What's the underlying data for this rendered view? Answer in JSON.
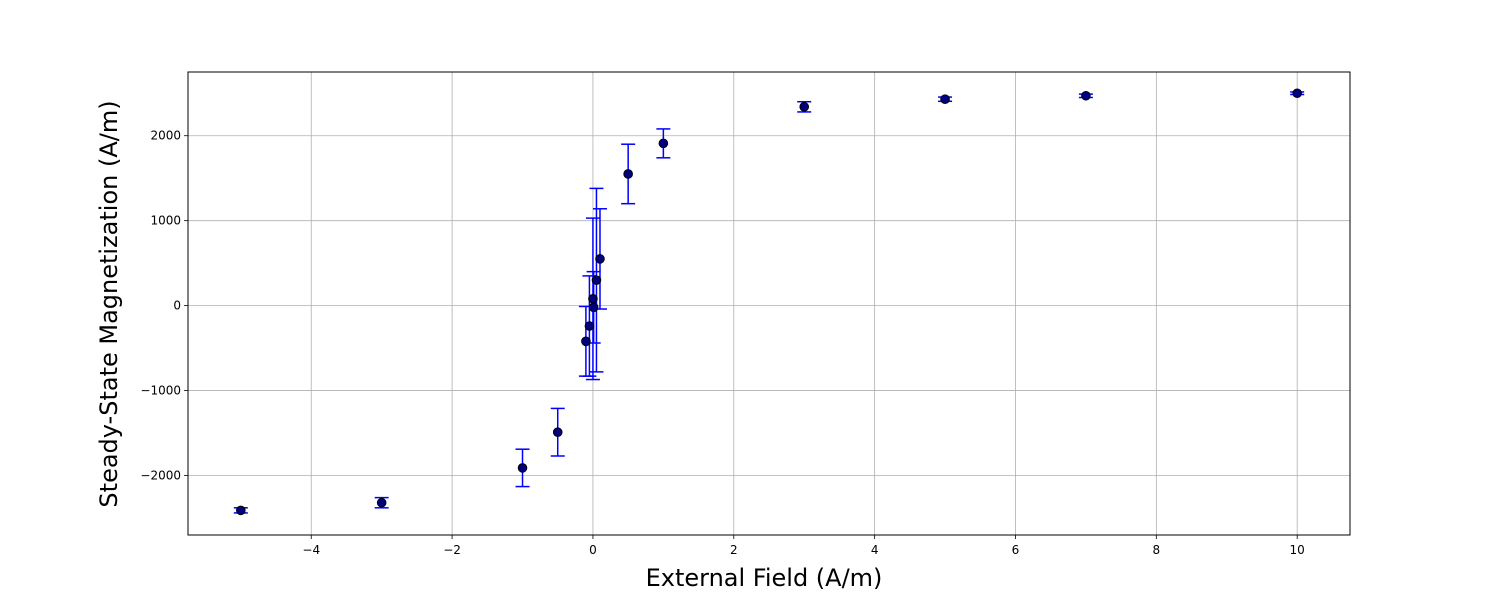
{
  "chart_data": {
    "type": "scatter",
    "title": "",
    "xlabel": "External Field (A/m)",
    "ylabel": "Steady-State Magnetization (A/m)",
    "xlim": [
      -5.75,
      10.75
    ],
    "ylim": [
      -2700,
      2750
    ],
    "grid": true,
    "legend": false,
    "x_ticks": [
      -4,
      -2,
      0,
      2,
      4,
      6,
      8,
      10
    ],
    "x_tick_labels": [
      "−4",
      "−2",
      "0",
      "2",
      "4",
      "6",
      "8",
      "10"
    ],
    "y_ticks": [
      -2000,
      -1000,
      0,
      1000,
      2000
    ],
    "y_tick_labels": [
      "−2000",
      "−1000",
      "0",
      "1000",
      "2000"
    ],
    "series": [
      {
        "marker_color": "#000080",
        "errorbar_color": "#0000ff",
        "points": [
          {
            "x": -5.0,
            "y": -2410,
            "err": 30
          },
          {
            "x": -3.0,
            "y": -2320,
            "err": 60
          },
          {
            "x": -1.0,
            "y": -1910,
            "err": 220
          },
          {
            "x": -0.5,
            "y": -1490,
            "err": 280
          },
          {
            "x": -0.1,
            "y": -420,
            "err": 410
          },
          {
            "x": -0.05,
            "y": -240,
            "err": 590
          },
          {
            "x": 0.0,
            "y": 80,
            "err": 950
          },
          {
            "x": 0.01,
            "y": -20,
            "err": 420
          },
          {
            "x": 0.05,
            "y": 300,
            "err": 1080
          },
          {
            "x": 0.1,
            "y": 550,
            "err": 590
          },
          {
            "x": 0.5,
            "y": 1550,
            "err": 350
          },
          {
            "x": 1.0,
            "y": 1910,
            "err": 170
          },
          {
            "x": 3.0,
            "y": 2340,
            "err": 60
          },
          {
            "x": 5.0,
            "y": 2430,
            "err": 25
          },
          {
            "x": 7.0,
            "y": 2470,
            "err": 20
          },
          {
            "x": 10.0,
            "y": 2500,
            "err": 15
          }
        ]
      }
    ]
  }
}
